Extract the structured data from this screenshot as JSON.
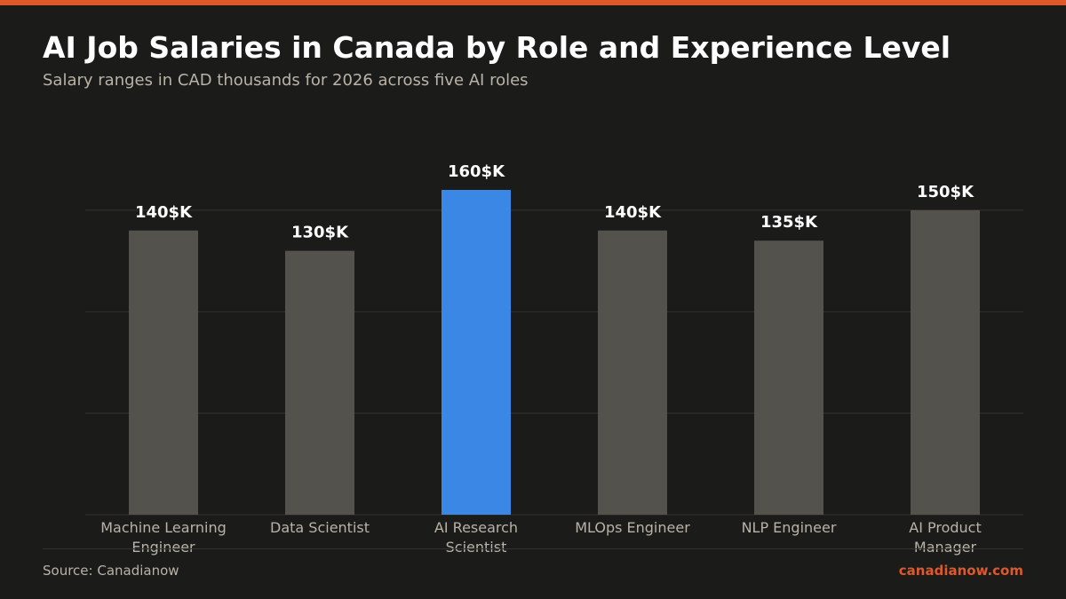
{
  "header": {
    "title": "AI Job Salaries in Canada by Role and Experience Level",
    "subtitle": "Salary ranges in CAD thousands for 2026 across five AI roles"
  },
  "footer": {
    "source": "Source: Canadianow",
    "brand": "canadianow.com"
  },
  "colors": {
    "accent": "#e0582a",
    "highlight_bar": "#3a87e6",
    "default_bar": "#54524c",
    "background": "#1b1b19",
    "gridline": "#34332f",
    "value_label": "#ffffff",
    "tick_label": "#b7b3aa"
  },
  "chart_data": {
    "type": "bar",
    "title": "AI Job Salaries in Canada by Role and Experience Level",
    "subtitle": "Salary ranges in CAD thousands for 2026 across five AI roles",
    "categories": [
      [
        "Machine Learning",
        "Engineer"
      ],
      [
        "Data Scientist"
      ],
      [
        "AI Research",
        "Scientist"
      ],
      [
        "MLOps Engineer"
      ],
      [
        "NLP Engineer"
      ],
      [
        "AI Product",
        "Manager"
      ]
    ],
    "values": [
      140,
      130,
      160,
      140,
      135,
      150
    ],
    "value_labels": [
      "140$K",
      "130$K",
      "160$K",
      "140$K",
      "135$K",
      "150$K"
    ],
    "highlight_index": 2,
    "ylim": [
      0,
      160
    ],
    "gridlines": [
      0,
      50,
      100,
      150
    ],
    "grid": true,
    "legend": "none",
    "xlabel": "",
    "ylabel": ""
  }
}
